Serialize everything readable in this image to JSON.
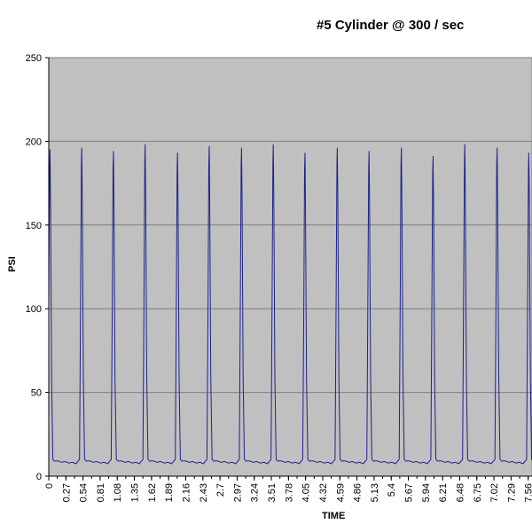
{
  "chart_data": {
    "type": "line",
    "title": "#5 Cylinder @ 300 / sec",
    "xlabel": "TIME",
    "ylabel": "PSI",
    "ylim": [
      0,
      250
    ],
    "yticks": [
      0,
      50,
      100,
      150,
      200,
      250
    ],
    "grid": true,
    "legend": "none",
    "x_tick_labels": [
      "0",
      "0.27",
      "0.54",
      "0.81",
      "1.08",
      "1.35",
      "1.62",
      "1.89",
      "2.16",
      "2.43",
      "2.7",
      "2.97",
      "3.24",
      "3.51",
      "3.78",
      "4.05",
      "4.32",
      "4.59",
      "4.86",
      "5.13",
      "5.4",
      "5.67",
      "5.94",
      "6.21",
      "6.48",
      "6.75",
      "7.02",
      "7.29",
      "7.56"
    ],
    "x_visible_max": 7.62,
    "series": [
      {
        "peaks": [
          {
            "x": 0.02,
            "y": 195
          },
          {
            "x": 0.52,
            "y": 196
          },
          {
            "x": 1.02,
            "y": 194
          },
          {
            "x": 1.52,
            "y": 198
          },
          {
            "x": 2.03,
            "y": 193
          },
          {
            "x": 2.53,
            "y": 197
          },
          {
            "x": 3.04,
            "y": 196
          },
          {
            "x": 3.54,
            "y": 198
          },
          {
            "x": 4.04,
            "y": 193
          },
          {
            "x": 4.55,
            "y": 196
          },
          {
            "x": 5.05,
            "y": 194
          },
          {
            "x": 5.56,
            "y": 196
          },
          {
            "x": 6.06,
            "y": 191
          },
          {
            "x": 6.56,
            "y": 198
          },
          {
            "x": 7.07,
            "y": 196
          },
          {
            "x": 7.57,
            "y": 193
          }
        ],
        "baseline": 7
      }
    ],
    "colors": {
      "plot_background": "#c0c0c0",
      "line": "#1f1f8f",
      "grid": "#7f7f7f"
    }
  }
}
